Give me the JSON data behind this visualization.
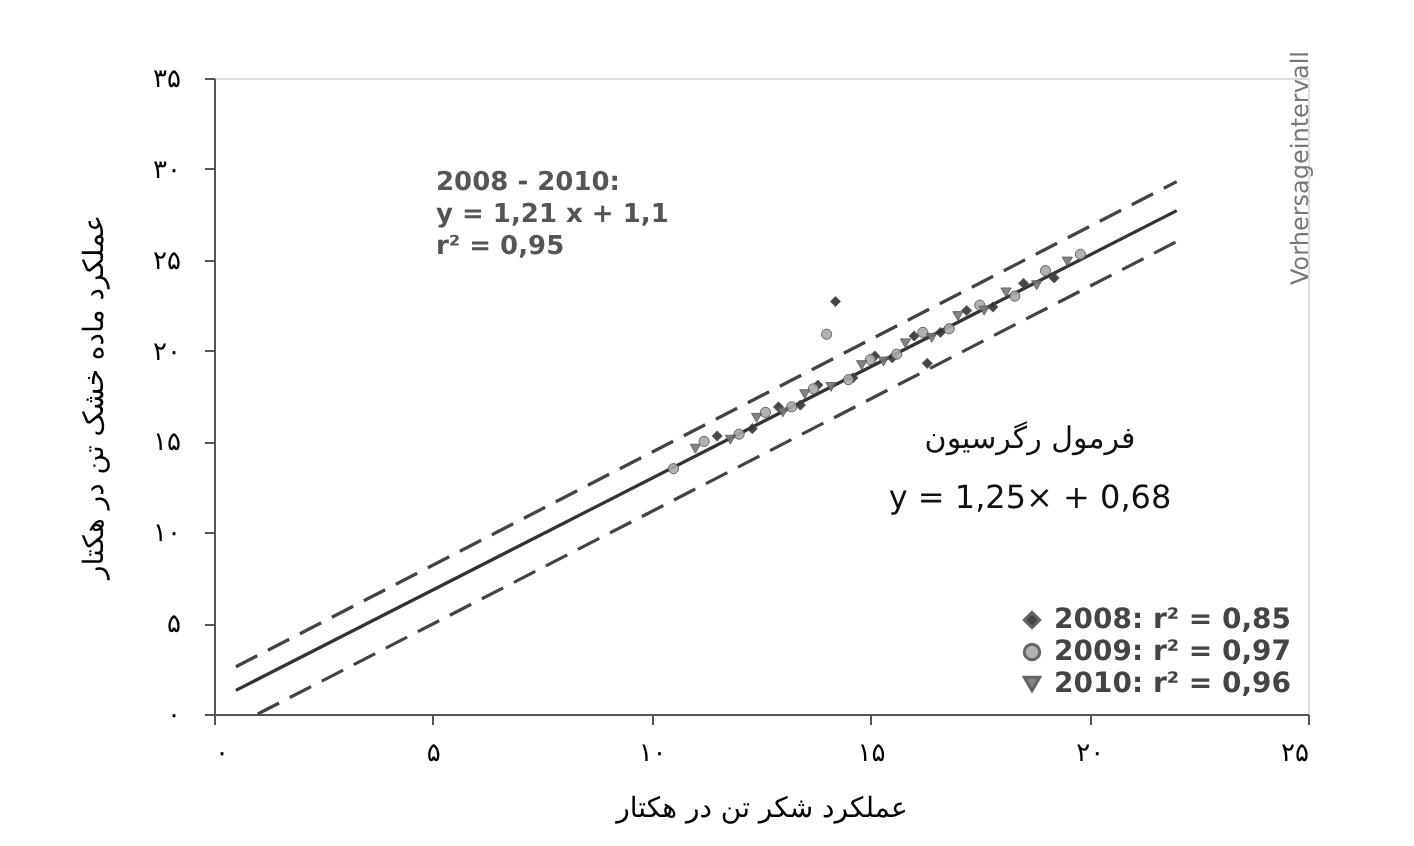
{
  "chart_data": {
    "type": "scatter",
    "xlabel": "عملکرد شکر تن در هکتار",
    "ylabel": "عملکرد ماده خشک تن در هکتار",
    "xlim": [
      0,
      25
    ],
    "ylim": [
      0,
      35
    ],
    "xticks": [
      {
        "value": 0,
        "label": "۰"
      },
      {
        "value": 5,
        "label": "۵"
      },
      {
        "value": 10,
        "label": "۱۰"
      },
      {
        "value": 15,
        "label": "۱۵"
      },
      {
        "value": 20,
        "label": "۲۰"
      },
      {
        "value": 25,
        "label": "۲۵"
      }
    ],
    "yticks": [
      {
        "value": 0,
        "label": "۰"
      },
      {
        "value": 5,
        "label": "۵"
      },
      {
        "value": 10,
        "label": "۱۰"
      },
      {
        "value": 15,
        "label": "۱۵"
      },
      {
        "value": 20,
        "label": "۲۰"
      },
      {
        "value": 25,
        "label": "۲۵"
      },
      {
        "value": 30,
        "label": "۳۰"
      },
      {
        "value": 35,
        "label": "۳۵"
      }
    ],
    "grid": false,
    "legend": "bottom right",
    "annotations": [
      "2008 - 2010:",
      "y =  1,21 x + 1,1",
      "r² = 0,95",
      "Vorhersageintervall",
      "فرمول رگرسیون",
      "y = 1,25× + 0,68"
    ],
    "series": [
      {
        "type": "line",
        "color": "#333333",
        "line_style": "solid",
        "marker": "none",
        "x": [
          0.5,
          22
        ],
        "values": [
          1.3,
          27.7
        ]
      },
      {
        "type": "line",
        "color": "#444444",
        "line_style": "dashed",
        "marker": "none",
        "x": [
          0.5,
          22
        ],
        "values": [
          2.6,
          29.3
        ]
      },
      {
        "type": "line",
        "color": "#444444",
        "line_style": "dashed",
        "marker": "none",
        "x": [
          1,
          22
        ],
        "values": [
          0,
          26.0
        ]
      },
      {
        "name": "2008: r² = 0,85",
        "color": "#333333",
        "marker": "diamond",
        "x": [
          11.5,
          12.3,
          12.9,
          13.4,
          13.8,
          14.2,
          14.6,
          15.1,
          15.5,
          16.0,
          16.3,
          16.6,
          17.2,
          17.8,
          18.5,
          19.2
        ],
        "values": [
          15.3,
          15.7,
          16.9,
          17.0,
          18.1,
          22.7,
          18.5,
          19.7,
          19.6,
          20.8,
          19.3,
          21.0,
          22.2,
          22.4,
          23.7,
          24.0
        ]
      },
      {
        "name": "2009: r² = 0,97",
        "color": "#aaaaaa",
        "marker": "circle",
        "x": [
          10.5,
          11.2,
          12.0,
          12.6,
          13.2,
          13.7,
          14.0,
          14.5,
          15.0,
          15.6,
          16.2,
          16.8,
          17.5,
          18.3,
          19.0,
          19.8
        ],
        "values": [
          13.5,
          15.0,
          15.4,
          16.6,
          16.9,
          17.9,
          20.9,
          18.4,
          19.5,
          19.8,
          21.0,
          21.2,
          22.5,
          23.0,
          24.4,
          25.3
        ]
      },
      {
        "name": "2010: r² = 0,96",
        "color": "#777777",
        "marker": "triangle",
        "x": [
          11.0,
          11.8,
          12.4,
          13.0,
          13.5,
          14.1,
          14.8,
          15.3,
          15.8,
          16.4,
          17.0,
          17.6,
          18.1,
          18.8,
          19.5
        ],
        "values": [
          14.6,
          15.1,
          16.3,
          16.6,
          17.6,
          18.0,
          19.2,
          19.4,
          20.4,
          20.7,
          21.9,
          22.2,
          23.2,
          23.6,
          24.9
        ]
      }
    ]
  }
}
